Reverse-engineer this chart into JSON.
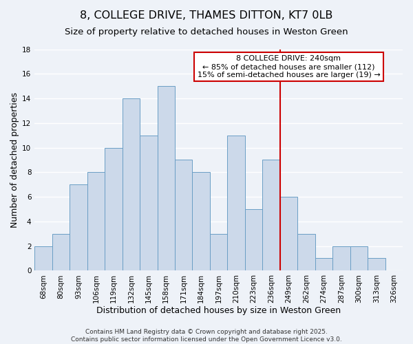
{
  "title": "8, COLLEGE DRIVE, THAMES DITTON, KT7 0LB",
  "subtitle": "Size of property relative to detached houses in Weston Green",
  "xlabel": "Distribution of detached houses by size in Weston Green",
  "ylabel": "Number of detached properties",
  "bin_labels": [
    "68sqm",
    "80sqm",
    "93sqm",
    "106sqm",
    "119sqm",
    "132sqm",
    "145sqm",
    "158sqm",
    "171sqm",
    "184sqm",
    "197sqm",
    "210sqm",
    "223sqm",
    "236sqm",
    "249sqm",
    "262sqm",
    "274sqm",
    "287sqm",
    "300sqm",
    "313sqm",
    "326sqm"
  ],
  "bar_values": [
    2,
    3,
    7,
    8,
    10,
    14,
    11,
    15,
    9,
    8,
    3,
    11,
    5,
    9,
    6,
    3,
    1,
    2,
    2,
    1,
    0
  ],
  "bar_color": "#ccd9ea",
  "bar_edgecolor": "#6a9ec5",
  "vline_x": 13.5,
  "vline_color": "#cc0000",
  "annotation_line1": "8 COLLEGE DRIVE: 240sqm",
  "annotation_line2": "← 85% of detached houses are smaller (112)",
  "annotation_line3": "15% of semi-detached houses are larger (19) →",
  "annotation_box_color": "#ffffff",
  "annotation_box_edgecolor": "#cc0000",
  "ylim": [
    0,
    18
  ],
  "yticks": [
    0,
    2,
    4,
    6,
    8,
    10,
    12,
    14,
    16,
    18
  ],
  "footer1": "Contains HM Land Registry data © Crown copyright and database right 2025.",
  "footer2": "Contains public sector information licensed under the Open Government Licence v3.0.",
  "background_color": "#eef2f8",
  "plot_background": "#eef2f8",
  "grid_color": "#ffffff",
  "title_fontsize": 11.5,
  "subtitle_fontsize": 9.5,
  "xlabel_fontsize": 9,
  "ylabel_fontsize": 9,
  "tick_fontsize": 7.5,
  "annotation_fontsize": 8,
  "footer_fontsize": 6.5
}
